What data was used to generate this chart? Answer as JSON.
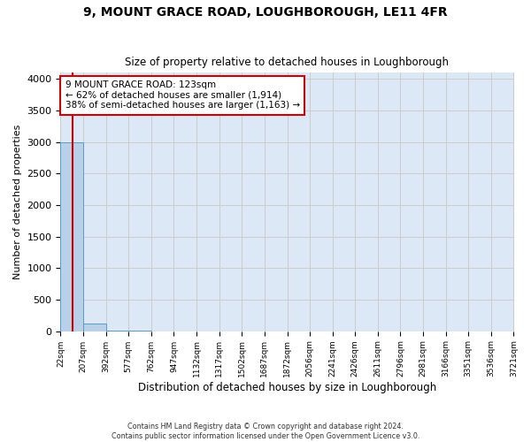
{
  "title": "9, MOUNT GRACE ROAD, LOUGHBOROUGH, LE11 4FR",
  "subtitle": "Size of property relative to detached houses in Loughborough",
  "xlabel": "Distribution of detached houses by size in Loughborough",
  "ylabel": "Number of detached properties",
  "footnote1": "Contains HM Land Registry data © Crown copyright and database right 2024.",
  "footnote2": "Contains public sector information licensed under the Open Government Licence v3.0.",
  "bins": [
    22,
    207,
    392,
    577,
    762,
    947,
    1132,
    1317,
    1502,
    1687,
    1872,
    2056,
    2241,
    2426,
    2611,
    2796,
    2981,
    3166,
    3351,
    3536,
    3721
  ],
  "bin_labels": [
    "22sqm",
    "207sqm",
    "392sqm",
    "577sqm",
    "762sqm",
    "947sqm",
    "1132sqm",
    "1317sqm",
    "1502sqm",
    "1687sqm",
    "1872sqm",
    "2056sqm",
    "2241sqm",
    "2426sqm",
    "2611sqm",
    "2796sqm",
    "2981sqm",
    "3166sqm",
    "3351sqm",
    "3536sqm",
    "3721sqm"
  ],
  "bar_heights": [
    3000,
    120,
    5,
    2,
    1,
    1,
    0,
    0,
    0,
    0,
    0,
    0,
    0,
    0,
    0,
    0,
    0,
    0,
    0,
    0
  ],
  "bar_color_normal": "#b8d0e8",
  "bar_edge_color": "#5a9ac8",
  "ylim": [
    0,
    4100
  ],
  "yticks": [
    0,
    500,
    1000,
    1500,
    2000,
    2500,
    3000,
    3500,
    4000
  ],
  "property_size": 123,
  "property_label": "9 MOUNT GRACE ROAD: 123sqm",
  "annotation_line1": "← 62% of detached houses are smaller (1,914)",
  "annotation_line2": "38% of semi-detached houses are larger (1,163) →",
  "annotation_box_color": "#ffffff",
  "annotation_box_edge": "#cc0000",
  "vline_color": "#cc0000",
  "grid_color": "#cccccc",
  "background_color": "#dce8f5"
}
